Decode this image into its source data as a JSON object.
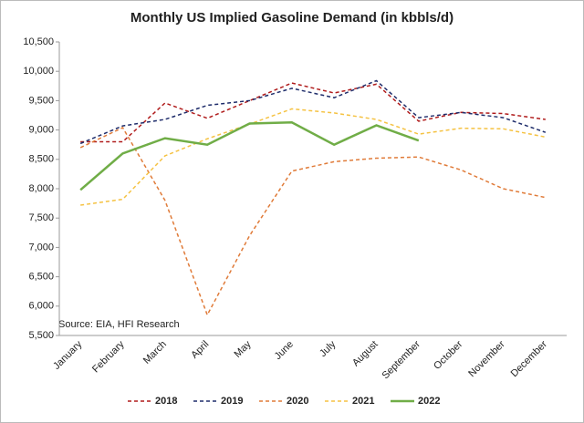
{
  "chart_data": {
    "type": "line",
    "title": "Monthly US Implied Gasoline Demand (in kbbls/d)",
    "annotation": "Source: EIA, HFI Research",
    "categories": [
      "January",
      "February",
      "March",
      "April",
      "May",
      "June",
      "July",
      "August",
      "September",
      "October",
      "November",
      "December"
    ],
    "series": [
      {
        "name": "2018",
        "color": "#b01c1c",
        "line_style": "dashed",
        "values": [
          8800,
          8800,
          9460,
          9200,
          9500,
          9800,
          9630,
          9780,
          9150,
          9300,
          9280,
          9180
        ]
      },
      {
        "name": "2019",
        "color": "#1f2d6b",
        "line_style": "dashed",
        "values": [
          8770,
          9070,
          9180,
          9420,
          9500,
          9710,
          9550,
          9840,
          9210,
          9300,
          9210,
          8960
        ]
      },
      {
        "name": "2020",
        "color": "#e07b39",
        "line_style": "dashed",
        "values": [
          8700,
          9040,
          7800,
          5850,
          7200,
          8300,
          8460,
          8520,
          8540,
          8320,
          8000,
          7850
        ]
      },
      {
        "name": "2021",
        "color": "#f5c242",
        "line_style": "dashed",
        "values": [
          7720,
          7820,
          8560,
          8850,
          9100,
          9360,
          9290,
          9180,
          8930,
          9030,
          9020,
          8880
        ]
      },
      {
        "name": "2022",
        "color": "#70ad47",
        "line_style": "solid",
        "values": [
          7980,
          8600,
          8860,
          8750,
          9110,
          9130,
          8750,
          9080,
          8820,
          null,
          null,
          null
        ]
      }
    ],
    "ylim": [
      5500,
      10500
    ],
    "yticks": [
      {
        "value": 5500,
        "label": "5,500"
      },
      {
        "value": 6000,
        "label": "6,000"
      },
      {
        "value": 6500,
        "label": "6,500"
      },
      {
        "value": 7000,
        "label": "7,000"
      },
      {
        "value": 7500,
        "label": "7,500"
      },
      {
        "value": 8000,
        "label": "8,000"
      },
      {
        "value": 8500,
        "label": "8,500"
      },
      {
        "value": 9000,
        "label": "9,000"
      },
      {
        "value": 9500,
        "label": "9,500"
      },
      {
        "value": 10000,
        "label": "10,000"
      },
      {
        "value": 10500,
        "label": "10,500"
      }
    ],
    "grid": false,
    "legend": "bottom"
  }
}
